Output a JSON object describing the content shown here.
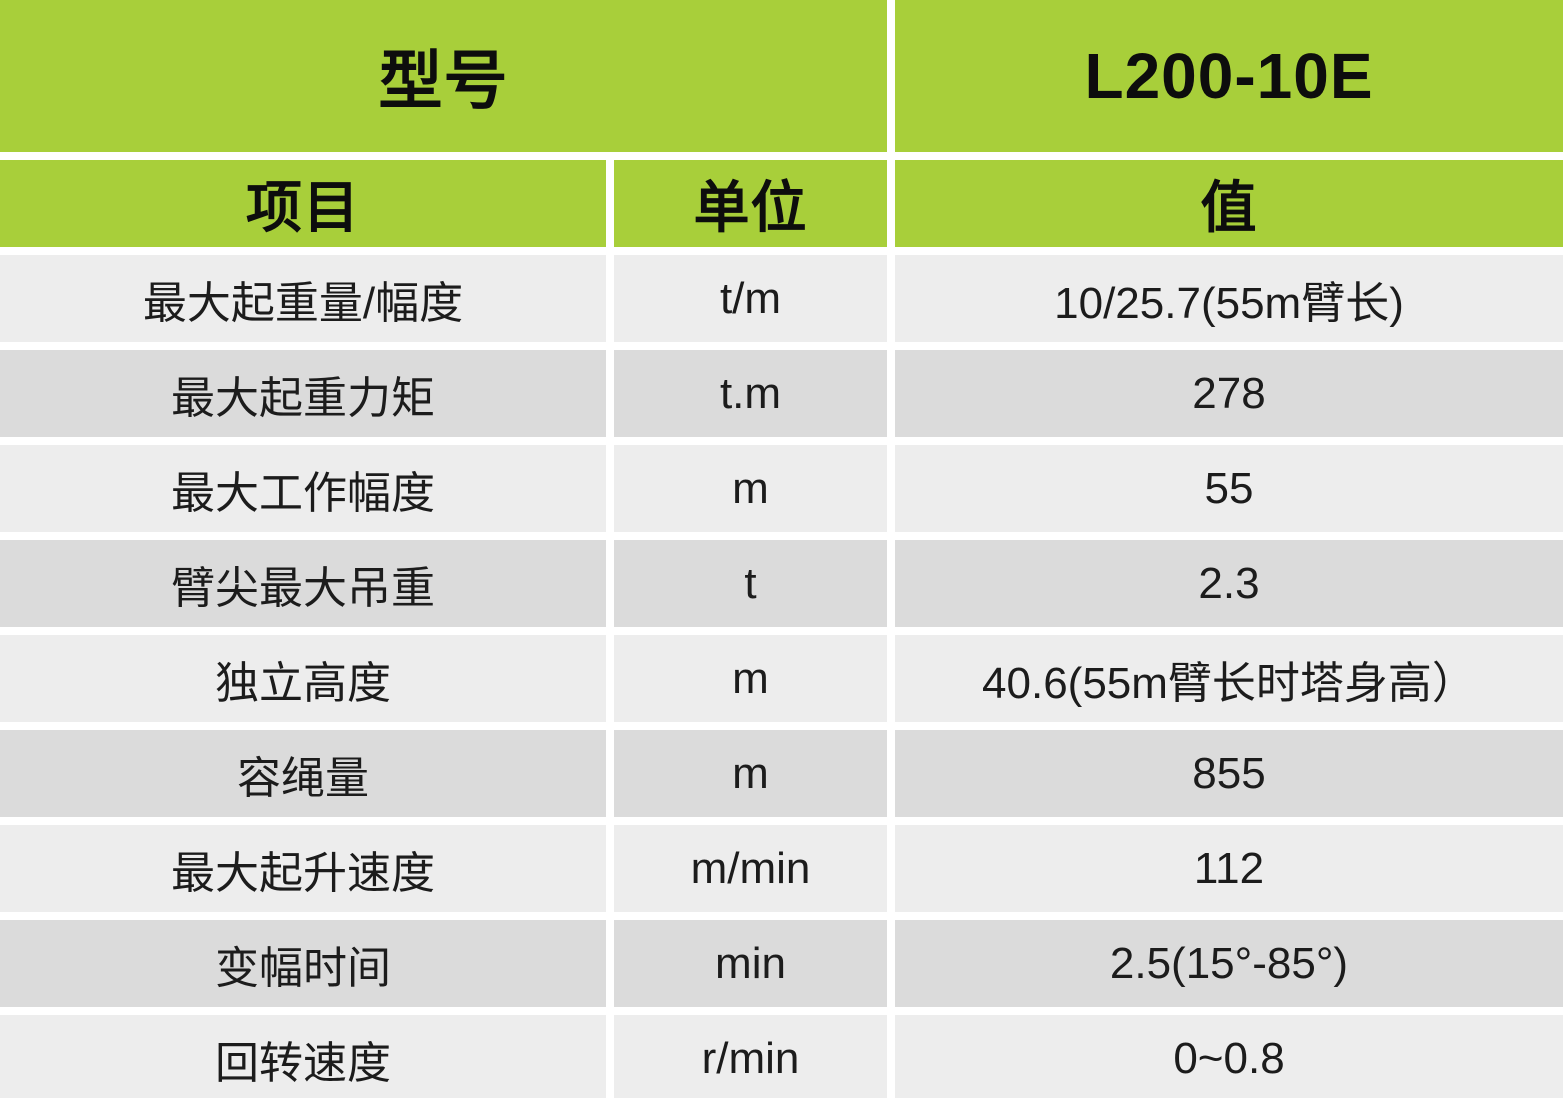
{
  "header": {
    "model_label": "型号",
    "model_number": "L200-10E",
    "columns": {
      "item": "项目",
      "unit": "单位",
      "value": "值"
    }
  },
  "rows": [
    {
      "item": "最大起重量/幅度",
      "unit": "t/m",
      "value": "10/25.7(55m臂长)"
    },
    {
      "item": "最大起重力矩",
      "unit": "t.m",
      "value": "278"
    },
    {
      "item": "最大工作幅度",
      "unit": "m",
      "value": "55"
    },
    {
      "item": "臂尖最大吊重",
      "unit": "t",
      "value": "2.3"
    },
    {
      "item": "独立高度",
      "unit": "m",
      "value": "40.6(55m臂长时塔身高）"
    },
    {
      "item": "容绳量",
      "unit": "m",
      "value": "855"
    },
    {
      "item": "最大起升速度",
      "unit": "m/min",
      "value": "112"
    },
    {
      "item": "变幅时间",
      "unit": "min",
      "value": "2.5(15°-85°)"
    },
    {
      "item": "回转速度",
      "unit": "r/min",
      "value": "0~0.8"
    }
  ],
  "colors": {
    "header_green": "#a8cf3a",
    "row_light": "#ededed",
    "row_dark": "#dbdbdb",
    "gap_white": "#ffffff",
    "header_text": "#0d0d0d",
    "body_text": "#1c1c1c"
  },
  "chart_data": {
    "type": "table",
    "model_header_label": "型号",
    "model": "L200-10E",
    "columns": [
      "项目",
      "单位",
      "值"
    ],
    "rows": [
      [
        "最大起重量/幅度",
        "t/m",
        "10/25.7(55m臂长)"
      ],
      [
        "最大起重力矩",
        "t.m",
        "278"
      ],
      [
        "最大工作幅度",
        "m",
        "55"
      ],
      [
        "臂尖最大吊重",
        "t",
        "2.3"
      ],
      [
        "独立高度",
        "m",
        "40.6(55m臂长时塔身高）"
      ],
      [
        "容绳量",
        "m",
        "855"
      ],
      [
        "最大起升速度",
        "m/min",
        "112"
      ],
      [
        "变幅时间",
        "min",
        "2.5(15°-85°)"
      ],
      [
        "回转速度",
        "r/min",
        "0~0.8"
      ]
    ]
  }
}
